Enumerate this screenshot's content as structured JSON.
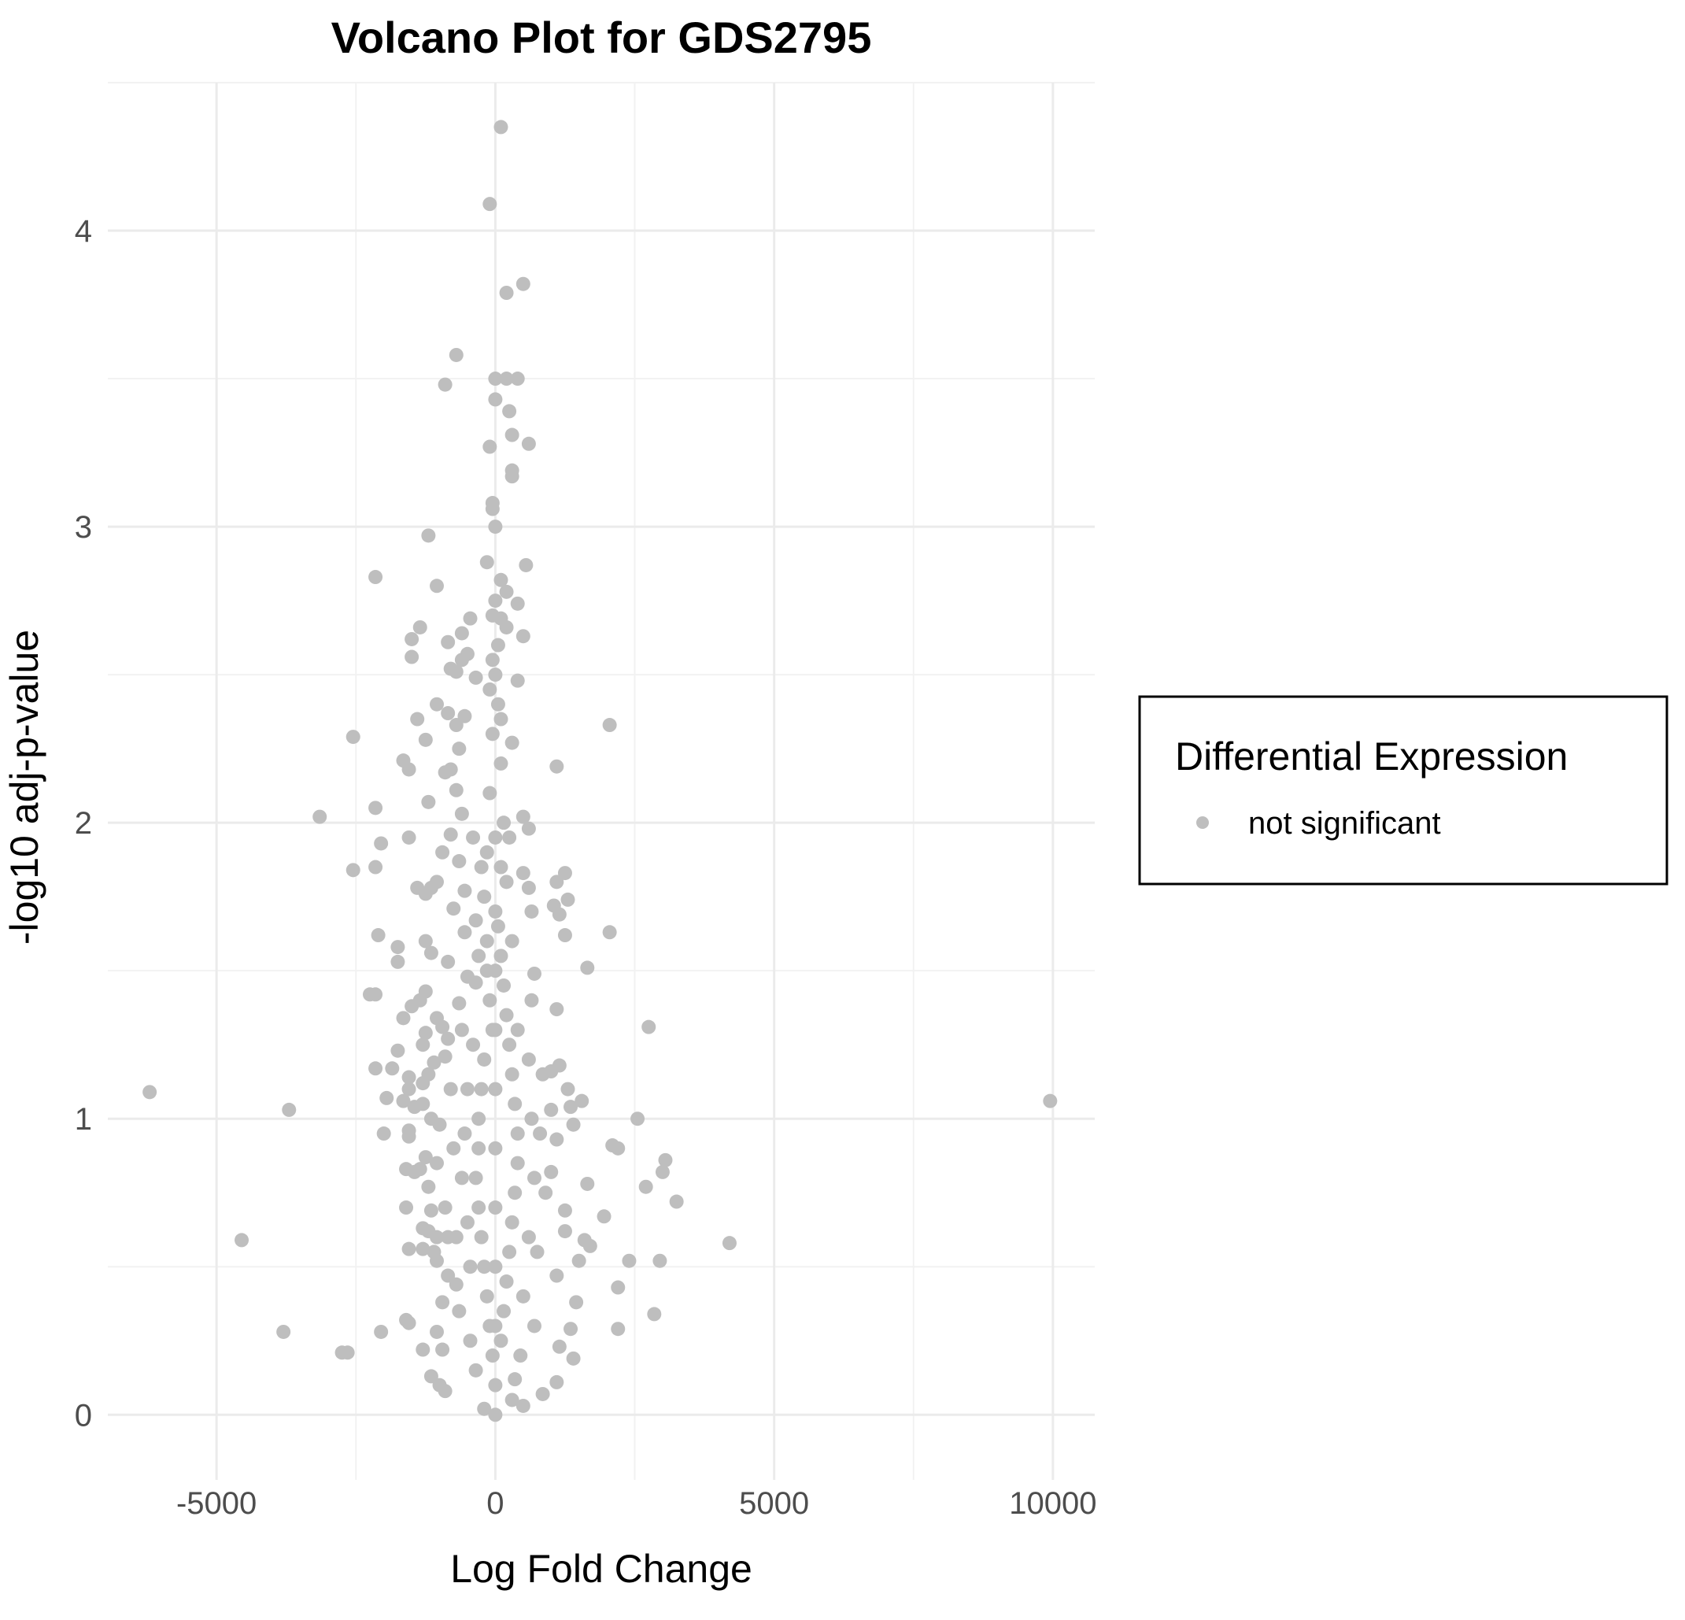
{
  "colors": {
    "background": "#ffffff",
    "grid_major": "#ebebeb",
    "grid_minor": "#f2f2f2",
    "point": "#bebebe",
    "title": "#000000",
    "tick": "#4d4d4d",
    "legend_border": "#000000"
  },
  "legend": {
    "title": "Differential Expression",
    "position": "right",
    "items": [
      {
        "label": "not significant",
        "color": "#bebebe"
      }
    ]
  },
  "chart_data": {
    "type": "scatter",
    "title": "Volcano Plot for GDS2795",
    "xlabel": "Log Fold Change",
    "ylabel": "-log10 adj-p-value",
    "xlim": [
      -6950,
      10750
    ],
    "ylim": [
      -0.22,
      4.5
    ],
    "x_ticks": [
      -5000,
      0,
      5000,
      10000
    ],
    "x_tick_labels": [
      "-5000",
      "0",
      "5000",
      "10000"
    ],
    "y_ticks": [
      0,
      1,
      2,
      3,
      4
    ],
    "y_tick_labels": [
      "0",
      "1",
      "2",
      "3",
      "4"
    ],
    "grid": true,
    "series": [
      {
        "name": "not significant",
        "color": "#bebebe",
        "points": [
          [
            100,
            4.35
          ],
          [
            -100,
            4.09
          ],
          [
            500,
            3.82
          ],
          [
            200,
            3.79
          ],
          [
            -700,
            3.58
          ],
          [
            -900,
            3.48
          ],
          [
            0,
            3.5
          ],
          [
            200,
            3.5
          ],
          [
            400,
            3.5
          ],
          [
            0,
            3.43
          ],
          [
            250,
            3.39
          ],
          [
            300,
            3.31
          ],
          [
            600,
            3.28
          ],
          [
            -100,
            3.27
          ],
          [
            300,
            3.19
          ],
          [
            300,
            3.17
          ],
          [
            -50,
            3.08
          ],
          [
            -50,
            3.06
          ],
          [
            0,
            3.0
          ],
          [
            -1200,
            2.97
          ],
          [
            -2150,
            2.83
          ],
          [
            -1050,
            2.8
          ],
          [
            550,
            2.87
          ],
          [
            100,
            2.82
          ],
          [
            -150,
            2.88
          ],
          [
            200,
            2.78
          ],
          [
            0,
            2.75
          ],
          [
            400,
            2.74
          ],
          [
            -50,
            2.7
          ],
          [
            100,
            2.69
          ],
          [
            -450,
            2.69
          ],
          [
            200,
            2.66
          ],
          [
            -1350,
            2.66
          ],
          [
            -600,
            2.64
          ],
          [
            500,
            2.63
          ],
          [
            -1500,
            2.62
          ],
          [
            -850,
            2.61
          ],
          [
            -500,
            2.57
          ],
          [
            -1500,
            2.56
          ],
          [
            -600,
            2.55
          ],
          [
            -800,
            2.52
          ],
          [
            -700,
            2.51
          ],
          [
            0,
            2.5
          ],
          [
            -350,
            2.49
          ],
          [
            400,
            2.48
          ],
          [
            2050,
            2.33
          ],
          [
            -2550,
            2.29
          ],
          [
            -1250,
            2.28
          ],
          [
            -1400,
            2.35
          ],
          [
            -850,
            2.37
          ],
          [
            -550,
            2.36
          ],
          [
            -700,
            2.33
          ],
          [
            -1050,
            2.4
          ],
          [
            300,
            2.27
          ],
          [
            -650,
            2.25
          ],
          [
            -1650,
            2.21
          ],
          [
            -1550,
            2.18
          ],
          [
            -900,
            2.17
          ],
          [
            1100,
            2.19
          ],
          [
            -800,
            2.18
          ],
          [
            -1200,
            2.07
          ],
          [
            -700,
            2.11
          ],
          [
            -600,
            2.03
          ],
          [
            -2150,
            2.05
          ],
          [
            -3150,
            2.02
          ],
          [
            500,
            2.02
          ],
          [
            -1550,
            1.95
          ],
          [
            -800,
            1.96
          ],
          [
            -400,
            1.95
          ],
          [
            -2050,
            1.93
          ],
          [
            600,
            1.98
          ],
          [
            -2550,
            1.84
          ],
          [
            -2150,
            1.85
          ],
          [
            -950,
            1.9
          ],
          [
            -650,
            1.87
          ],
          [
            -1050,
            1.8
          ],
          [
            500,
            1.83
          ],
          [
            1100,
            1.8
          ],
          [
            1250,
            1.83
          ],
          [
            -1400,
            1.78
          ],
          [
            -1150,
            1.78
          ],
          [
            -1250,
            1.76
          ],
          [
            -550,
            1.77
          ],
          [
            600,
            1.78
          ],
          [
            1300,
            1.74
          ],
          [
            1050,
            1.72
          ],
          [
            -750,
            1.71
          ],
          [
            650,
            1.7
          ],
          [
            1150,
            1.69
          ],
          [
            -350,
            1.67
          ],
          [
            2050,
            1.63
          ],
          [
            -2100,
            1.62
          ],
          [
            -1750,
            1.58
          ],
          [
            -550,
            1.63
          ],
          [
            -1250,
            1.6
          ],
          [
            1250,
            1.62
          ],
          [
            -1750,
            1.53
          ],
          [
            -1150,
            1.56
          ],
          [
            -850,
            1.53
          ],
          [
            1650,
            1.51
          ],
          [
            -500,
            1.48
          ],
          [
            -350,
            1.46
          ],
          [
            700,
            1.49
          ],
          [
            -2250,
            1.42
          ],
          [
            -2150,
            1.42
          ],
          [
            -1250,
            1.43
          ],
          [
            -1350,
            1.4
          ],
          [
            -1500,
            1.38
          ],
          [
            -650,
            1.39
          ],
          [
            1100,
            1.37
          ],
          [
            -1650,
            1.34
          ],
          [
            -1050,
            1.34
          ],
          [
            -950,
            1.31
          ],
          [
            -1250,
            1.29
          ],
          [
            -850,
            1.27
          ],
          [
            2750,
            1.31
          ],
          [
            -1300,
            1.25
          ],
          [
            -1750,
            1.23
          ],
          [
            -1850,
            1.17
          ],
          [
            -1100,
            1.19
          ],
          [
            -900,
            1.21
          ],
          [
            1150,
            1.18
          ],
          [
            -2150,
            1.17
          ],
          [
            -1550,
            1.14
          ],
          [
            -1200,
            1.15
          ],
          [
            1000,
            1.16
          ],
          [
            -1550,
            1.1
          ],
          [
            -1300,
            1.12
          ],
          [
            1300,
            1.1
          ],
          [
            -6200,
            1.09
          ],
          [
            -1950,
            1.07
          ],
          [
            -1650,
            1.06
          ],
          [
            -1300,
            1.05
          ],
          [
            1550,
            1.06
          ],
          [
            1350,
            1.04
          ],
          [
            -3700,
            1.03
          ],
          [
            -1450,
            1.04
          ],
          [
            9950,
            1.06
          ],
          [
            1000,
            1.03
          ],
          [
            2550,
            1.0
          ],
          [
            -1150,
            1.0
          ],
          [
            -1000,
            0.98
          ],
          [
            -2000,
            0.95
          ],
          [
            -1550,
            0.96
          ],
          [
            -1550,
            0.94
          ],
          [
            1400,
            0.98
          ],
          [
            1100,
            0.93
          ],
          [
            2100,
            0.91
          ],
          [
            2200,
            0.9
          ],
          [
            -1250,
            0.87
          ],
          [
            -1050,
            0.85
          ],
          [
            3050,
            0.86
          ],
          [
            -1600,
            0.83
          ],
          [
            -1450,
            0.82
          ],
          [
            -1350,
            0.83
          ],
          [
            1000,
            0.82
          ],
          [
            3000,
            0.82
          ],
          [
            -1200,
            0.77
          ],
          [
            1650,
            0.78
          ],
          [
            2700,
            0.77
          ],
          [
            3250,
            0.72
          ],
          [
            -1600,
            0.7
          ],
          [
            -1150,
            0.69
          ],
          [
            1250,
            0.69
          ],
          [
            1950,
            0.67
          ],
          [
            -1300,
            0.63
          ],
          [
            -1200,
            0.62
          ],
          [
            -1050,
            0.6
          ],
          [
            -850,
            0.6
          ],
          [
            1250,
            0.62
          ],
          [
            -4550,
            0.59
          ],
          [
            4200,
            0.58
          ],
          [
            1600,
            0.59
          ],
          [
            1700,
            0.57
          ],
          [
            -1550,
            0.56
          ],
          [
            -1300,
            0.56
          ],
          [
            -1100,
            0.55
          ],
          [
            -1050,
            0.52
          ],
          [
            2400,
            0.52
          ],
          [
            1500,
            0.52
          ],
          [
            2950,
            0.52
          ],
          [
            -850,
            0.47
          ],
          [
            1100,
            0.47
          ],
          [
            -700,
            0.44
          ],
          [
            2200,
            0.43
          ],
          [
            1450,
            0.38
          ],
          [
            -950,
            0.38
          ],
          [
            -1600,
            0.32
          ],
          [
            -1550,
            0.31
          ],
          [
            2850,
            0.34
          ],
          [
            -3800,
            0.28
          ],
          [
            -2050,
            0.28
          ],
          [
            -1050,
            0.28
          ],
          [
            2200,
            0.29
          ],
          [
            1350,
            0.29
          ],
          [
            -2750,
            0.21
          ],
          [
            -2650,
            0.21
          ],
          [
            -1300,
            0.22
          ],
          [
            -950,
            0.22
          ],
          [
            1150,
            0.23
          ],
          [
            1400,
            0.19
          ],
          [
            -1150,
            0.13
          ],
          [
            -1000,
            0.1
          ],
          [
            -900,
            0.08
          ],
          [
            1100,
            0.11
          ],
          [
            850,
            0.07
          ],
          [
            500,
            0.03
          ],
          [
            300,
            0.05
          ],
          [
            0,
            0.0
          ],
          [
            -200,
            0.02
          ],
          [
            -150,
            1.6
          ],
          [
            -150,
            1.5
          ],
          [
            -100,
            1.4
          ],
          [
            -50,
            1.3
          ],
          [
            -200,
            1.2
          ],
          [
            -250,
            1.1
          ],
          [
            -300,
            1.0
          ],
          [
            -300,
            0.9
          ],
          [
            -350,
            0.8
          ],
          [
            -300,
            0.7
          ],
          [
            -250,
            0.6
          ],
          [
            -200,
            0.5
          ],
          [
            -150,
            0.4
          ],
          [
            -100,
            0.3
          ],
          [
            -50,
            0.2
          ],
          [
            50,
            1.65
          ],
          [
            100,
            1.55
          ],
          [
            150,
            1.45
          ],
          [
            200,
            1.35
          ],
          [
            250,
            1.25
          ],
          [
            300,
            1.15
          ],
          [
            350,
            1.05
          ],
          [
            400,
            0.95
          ],
          [
            400,
            0.85
          ],
          [
            350,
            0.75
          ],
          [
            300,
            0.65
          ],
          [
            250,
            0.55
          ],
          [
            200,
            0.45
          ],
          [
            150,
            0.35
          ],
          [
            100,
            0.25
          ],
          [
            0,
            1.7
          ],
          [
            0,
            1.5
          ],
          [
            0,
            1.3
          ],
          [
            0,
            1.1
          ],
          [
            0,
            0.9
          ],
          [
            0,
            0.7
          ],
          [
            0,
            0.5
          ],
          [
            0,
            0.3
          ],
          [
            0,
            0.1
          ],
          [
            -500,
            1.1
          ],
          [
            -550,
            0.95
          ],
          [
            -600,
            0.8
          ],
          [
            -500,
            0.65
          ],
          [
            -450,
            0.5
          ],
          [
            600,
            1.2
          ],
          [
            650,
            1.0
          ],
          [
            700,
            0.8
          ],
          [
            600,
            0.6
          ],
          [
            500,
            0.4
          ],
          [
            -750,
            0.9
          ],
          [
            800,
            0.95
          ],
          [
            -700,
            0.6
          ],
          [
            750,
            0.55
          ],
          [
            -350,
            0.15
          ],
          [
            350,
            0.12
          ],
          [
            -100,
            2.1
          ],
          [
            100,
            2.2
          ],
          [
            -50,
            2.3
          ],
          [
            50,
            2.4
          ],
          [
            150,
            2.0
          ],
          [
            -150,
            1.9
          ],
          [
            200,
            1.8
          ],
          [
            -200,
            1.75
          ],
          [
            0,
            1.95
          ],
          [
            100,
            1.85
          ],
          [
            -600,
            1.3
          ],
          [
            650,
            1.4
          ],
          [
            -800,
            1.1
          ],
          [
            850,
            1.15
          ],
          [
            -900,
            0.7
          ],
          [
            900,
            0.75
          ],
          [
            -650,
            0.35
          ],
          [
            700,
            0.3
          ],
          [
            -450,
            0.25
          ],
          [
            450,
            0.2
          ],
          [
            -300,
            1.55
          ],
          [
            300,
            1.6
          ],
          [
            -250,
            1.85
          ],
          [
            250,
            1.95
          ],
          [
            -50,
            2.55
          ],
          [
            50,
            2.6
          ],
          [
            -100,
            2.45
          ],
          [
            100,
            2.35
          ],
          [
            -400,
            1.25
          ],
          [
            400,
            1.3
          ]
        ]
      }
    ]
  }
}
